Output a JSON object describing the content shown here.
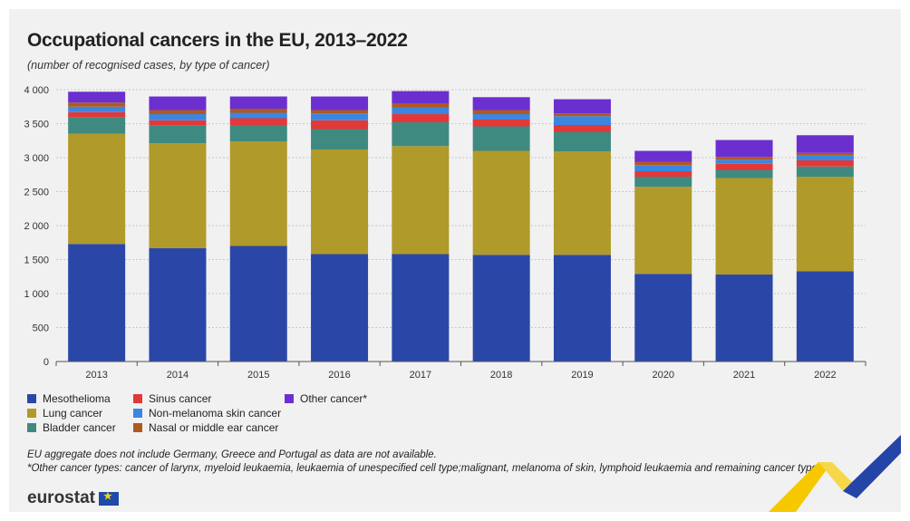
{
  "title": "Occupational cancers in the EU, 2013–2022",
  "subtitle": "(number of recognised cases, by type of cancer)",
  "notes": [
    "EU aggregate does not include Germany, Greece and Portugal as data are not available.",
    "*Other cancer types: cancer of larynx, myeloid leukaemia, leukaemia of unespecified cell type;malignant, melanoma of skin, lymphoid leukaemia and remaining cancer types."
  ],
  "logo": {
    "text": "eurostat"
  },
  "colors": {
    "panel": "#f1f1f1",
    "gridline": "#c8c8c8",
    "brand_blue": "#2544a8",
    "brand_yellow": "#f5c800"
  },
  "chart_data": {
    "type": "bar",
    "stacked": true,
    "categories": [
      "2013",
      "2014",
      "2015",
      "2016",
      "2017",
      "2018",
      "2019",
      "2020",
      "2021",
      "2022"
    ],
    "ylim": [
      0,
      4000
    ],
    "yticks": [
      0,
      500,
      1000,
      1500,
      2000,
      2500,
      3000,
      3500,
      4000
    ],
    "ytick_labels": [
      "0",
      "500",
      "1 000",
      "1 500",
      "2 000",
      "2 500",
      "3 000",
      "3 500",
      "4 000"
    ],
    "grid": true,
    "legend_position": "bottom-left",
    "series": [
      {
        "name": "Mesothelioma",
        "color": "#2a47a8",
        "values": [
          1730,
          1670,
          1700,
          1580,
          1580,
          1570,
          1570,
          1290,
          1280,
          1330
        ]
      },
      {
        "name": "Lung cancer",
        "color": "#b09a2a",
        "values": [
          1620,
          1540,
          1540,
          1540,
          1590,
          1530,
          1520,
          1280,
          1420,
          1390
        ]
      },
      {
        "name": "Bladder cancer",
        "color": "#3f8a80",
        "values": [
          240,
          260,
          240,
          300,
          350,
          360,
          290,
          150,
          120,
          150
        ]
      },
      {
        "name": "Sinus cancer",
        "color": "#e23838",
        "values": [
          80,
          80,
          100,
          130,
          120,
          100,
          100,
          80,
          90,
          90
        ]
      },
      {
        "name": "Non-melanoma skin cancer",
        "color": "#3b86e0",
        "values": [
          80,
          90,
          80,
          100,
          100,
          80,
          130,
          90,
          60,
          70
        ]
      },
      {
        "name": "Nasal or middle ear cancer",
        "color": "#b0591f",
        "values": [
          60,
          60,
          60,
          50,
          60,
          60,
          40,
          50,
          40,
          40
        ]
      },
      {
        "name": "Other cancer*",
        "color": "#6b2fd0",
        "values": [
          160,
          200,
          180,
          200,
          180,
          190,
          210,
          160,
          250,
          260
        ]
      }
    ]
  }
}
